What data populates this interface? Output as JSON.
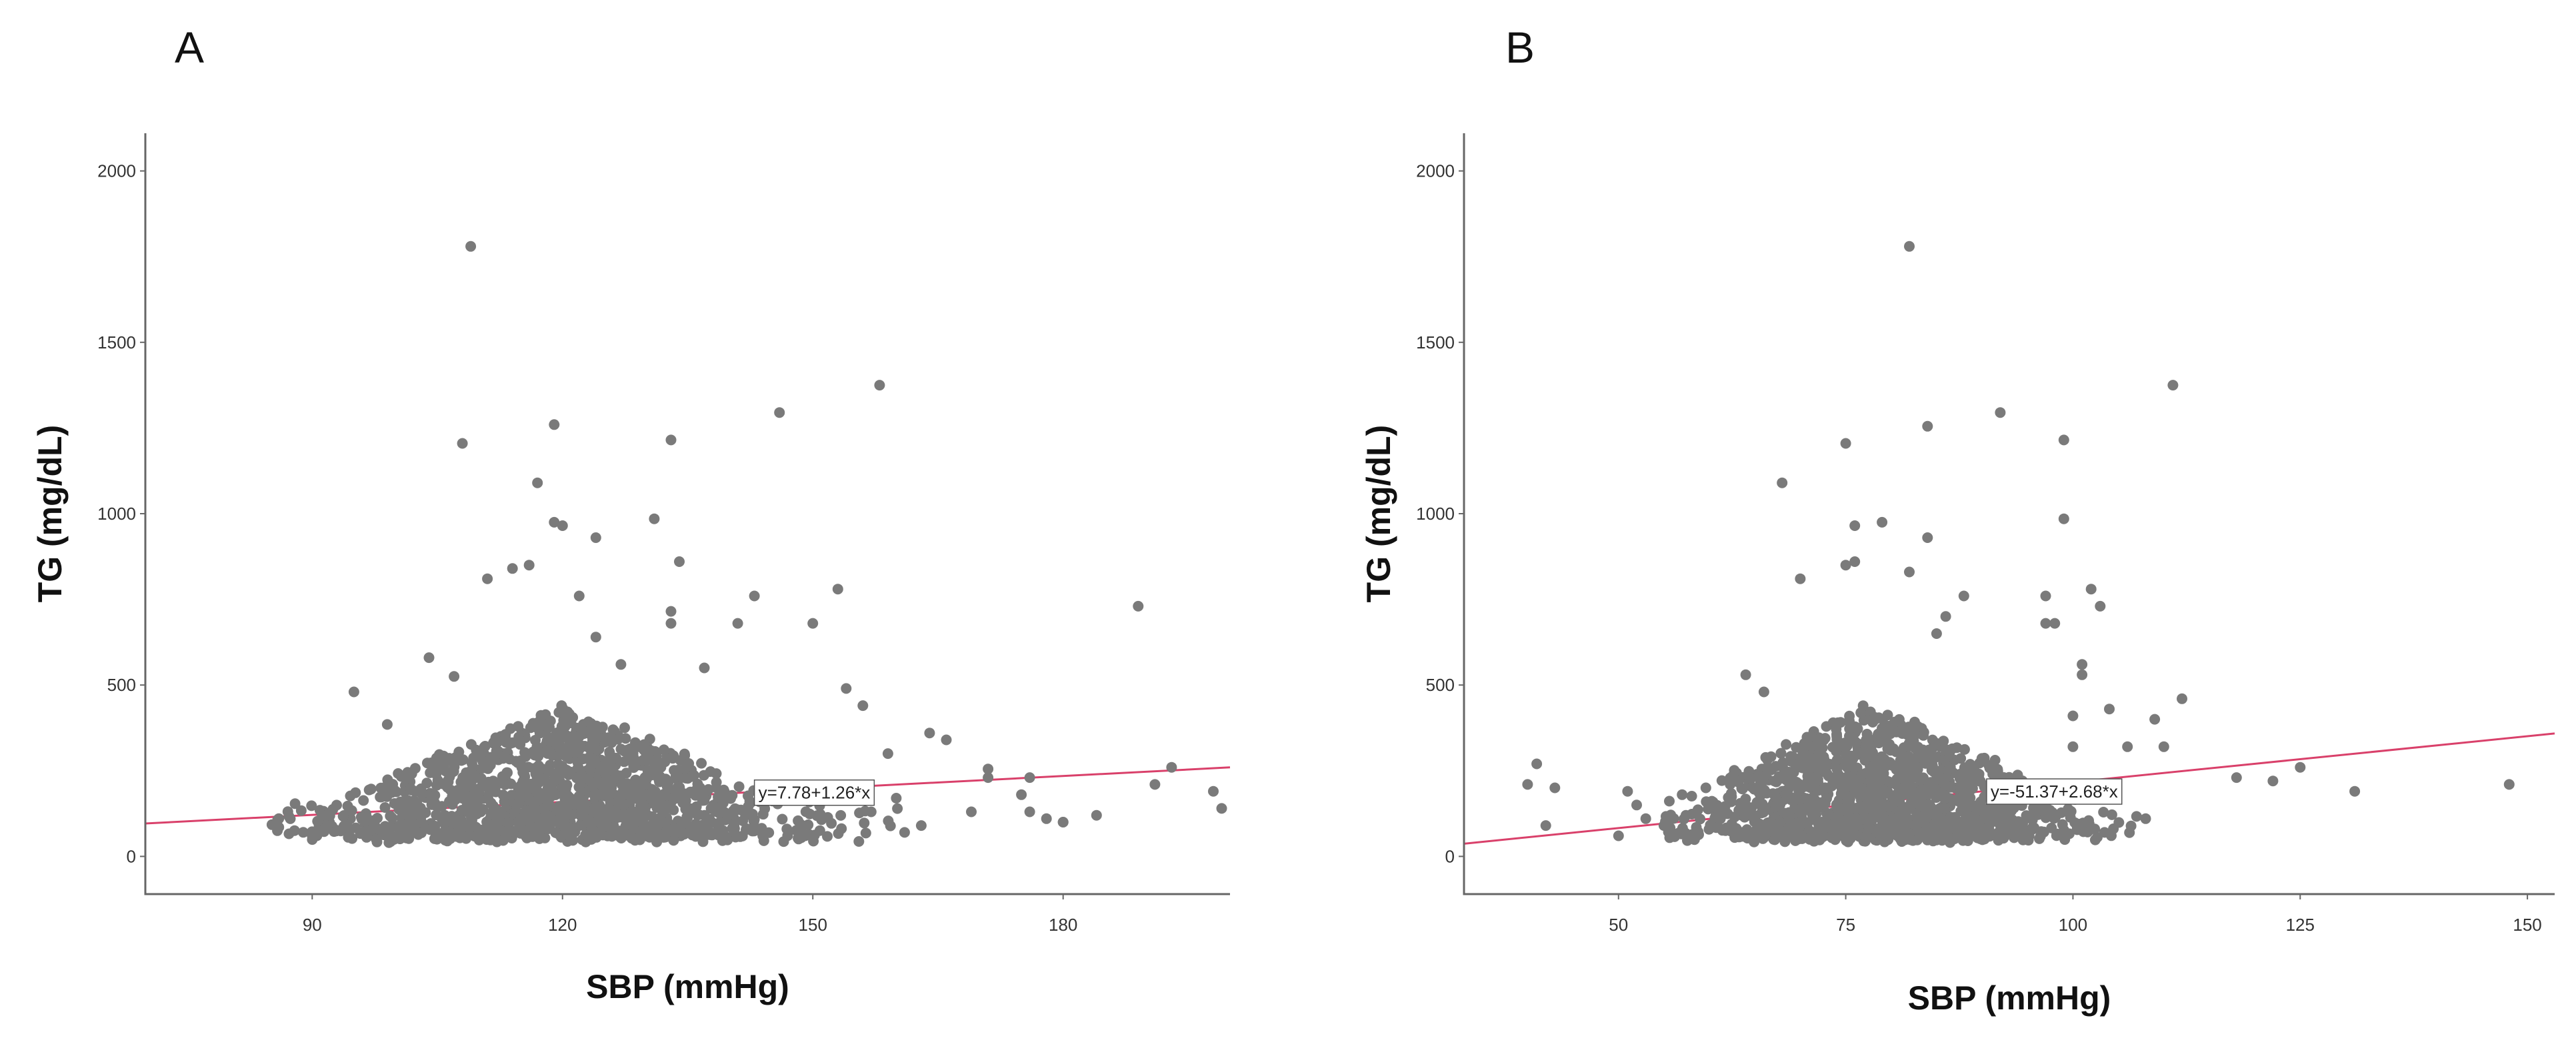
{
  "chart_data": [
    {
      "type": "scatter",
      "panel_label": "A",
      "xlabel": "SBP (mmHg)",
      "ylabel": "TG (mg/dL)",
      "xlim": [
        70,
        200
      ],
      "ylim": [
        -110,
        2110
      ],
      "xticks": [
        90,
        120,
        150,
        180
      ],
      "yticks": [
        0,
        500,
        1000,
        1500,
        2000
      ],
      "fit": {
        "intercept": 7.78,
        "slope": 1.26,
        "label": "y=7.78+1.26*x",
        "label_x": 143
      },
      "cluster": {
        "x_mean": 120,
        "x_sd": 13,
        "x_min": 85,
        "x_max": 165,
        "y_base": 40,
        "y_peak": 420,
        "n": 1400,
        "seed": 11
      },
      "points": [
        [
          109,
          1780
        ],
        [
          158,
          1375
        ],
        [
          146,
          1295
        ],
        [
          119,
          1260
        ],
        [
          133,
          1215
        ],
        [
          108,
          1205
        ],
        [
          117,
          1090
        ],
        [
          119,
          975
        ],
        [
          120,
          965
        ],
        [
          131,
          985
        ],
        [
          124,
          930
        ],
        [
          134,
          860
        ],
        [
          116,
          850
        ],
        [
          114,
          840
        ],
        [
          111,
          810
        ],
        [
          189,
          730
        ],
        [
          133,
          715
        ],
        [
          133,
          680
        ],
        [
          143,
          760
        ],
        [
          153,
          780
        ],
        [
          141,
          680
        ],
        [
          150,
          680
        ],
        [
          127,
          560
        ],
        [
          137,
          550
        ],
        [
          104,
          580
        ],
        [
          107,
          525
        ],
        [
          95,
          480
        ],
        [
          154,
          490
        ],
        [
          99,
          385
        ],
        [
          122,
          760
        ],
        [
          124,
          640
        ],
        [
          156,
          440
        ],
        [
          164,
          360
        ],
        [
          166,
          340
        ],
        [
          171,
          255
        ],
        [
          171,
          230
        ],
        [
          176,
          230
        ],
        [
          175,
          180
        ],
        [
          178,
          110
        ],
        [
          180,
          100
        ],
        [
          184,
          120
        ],
        [
          191,
          210
        ],
        [
          193,
          260
        ],
        [
          198,
          190
        ],
        [
          199,
          140
        ],
        [
          169,
          130
        ],
        [
          176,
          130
        ],
        [
          180,
          100
        ],
        [
          86,
          110
        ],
        [
          86,
          85
        ],
        [
          90,
          60
        ],
        [
          163,
          90
        ],
        [
          161,
          70
        ],
        [
          160,
          170
        ],
        [
          157,
          130
        ],
        [
          159,
          300
        ]
      ]
    },
    {
      "type": "scatter",
      "panel_label": "B",
      "xlabel": "SBP (mmHg)",
      "ylabel": "TG (mg/dL)",
      "xlim": [
        33,
        153
      ],
      "ylim": [
        -110,
        2110
      ],
      "xticks": [
        50,
        75,
        100,
        125,
        150
      ],
      "yticks": [
        0,
        500,
        1000,
        1500,
        2000
      ],
      "fit": {
        "intercept": -51.37,
        "slope": 2.68,
        "label": "y=-51.37+2.68*x",
        "label_x": 90.5
      },
      "cluster": {
        "x_mean": 78,
        "x_sd": 10,
        "x_min": 55,
        "x_max": 108,
        "y_base": 40,
        "y_peak": 430,
        "n": 1400,
        "seed": 29
      },
      "points": [
        [
          82,
          1780
        ],
        [
          111,
          1375
        ],
        [
          92,
          1295
        ],
        [
          84,
          1255
        ],
        [
          99,
          1215
        ],
        [
          75,
          1205
        ],
        [
          68,
          1090
        ],
        [
          79,
          975
        ],
        [
          76,
          965
        ],
        [
          99,
          985
        ],
        [
          84,
          930
        ],
        [
          76,
          860
        ],
        [
          75,
          850
        ],
        [
          82,
          830
        ],
        [
          70,
          810
        ],
        [
          102,
          780
        ],
        [
          103,
          730
        ],
        [
          97,
          760
        ],
        [
          97,
          680
        ],
        [
          98,
          680
        ],
        [
          88,
          760
        ],
        [
          86,
          700
        ],
        [
          85,
          650
        ],
        [
          101,
          560
        ],
        [
          101,
          530
        ],
        [
          100,
          410
        ],
        [
          100,
          320
        ],
        [
          104,
          430
        ],
        [
          109,
          400
        ],
        [
          110,
          320
        ],
        [
          112,
          460
        ],
        [
          118,
          230
        ],
        [
          122,
          220
        ],
        [
          125,
          260
        ],
        [
          131,
          190
        ],
        [
          148,
          210
        ],
        [
          108,
          110
        ],
        [
          41,
          270
        ],
        [
          40,
          210
        ],
        [
          43,
          200
        ],
        [
          42,
          90
        ],
        [
          50,
          60
        ],
        [
          51,
          190
        ],
        [
          52,
          150
        ],
        [
          53,
          110
        ],
        [
          55,
          90
        ],
        [
          57,
          180
        ],
        [
          64,
          530
        ],
        [
          66,
          480
        ],
        [
          106,
          320
        ]
      ]
    }
  ]
}
